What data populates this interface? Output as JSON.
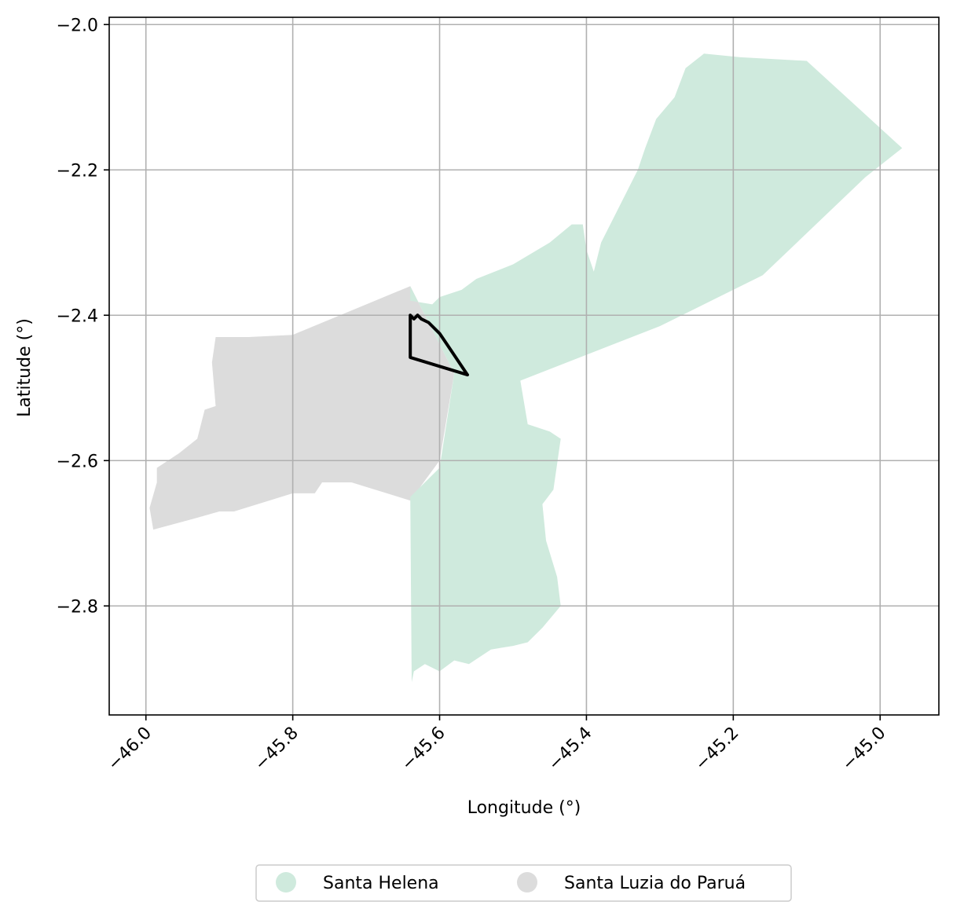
{
  "map": {
    "xlabel": "Longitude (°)",
    "ylabel": "Latitude (°)",
    "xlim": [
      -46.05,
      -44.92
    ],
    "ylim": [
      -2.95,
      -1.99
    ],
    "x_ticks": [
      -46.0,
      -45.8,
      -45.6,
      -45.4,
      -45.2,
      -45.0
    ],
    "x_tick_labels": [
      "−46.0",
      "−45.8",
      "−45.6",
      "−45.4",
      "−45.2",
      "−45.0"
    ],
    "y_ticks": [
      -2.0,
      -2.2,
      -2.4,
      -2.6,
      -2.8
    ],
    "y_tick_labels": [
      "−2.0",
      "−2.2",
      "−2.4",
      "−2.6",
      "−2.8"
    ],
    "grid": true,
    "legend_position": "bottom-center",
    "regions": [
      {
        "name": "Santa Luzia do Paruá",
        "color": "#dcdcdc",
        "polygon": [
          [
            -45.64,
            -2.36
          ],
          [
            -45.58,
            -2.48
          ],
          [
            -45.6,
            -2.6
          ],
          [
            -45.64,
            -2.655
          ],
          [
            -45.72,
            -2.63
          ],
          [
            -45.76,
            -2.63
          ],
          [
            -45.77,
            -2.645
          ],
          [
            -45.8,
            -2.645
          ],
          [
            -45.88,
            -2.67
          ],
          [
            -45.9,
            -2.67
          ],
          [
            -45.935,
            -2.68
          ],
          [
            -45.99,
            -2.695
          ],
          [
            -45.995,
            -2.665
          ],
          [
            -45.985,
            -2.63
          ],
          [
            -45.985,
            -2.61
          ],
          [
            -45.955,
            -2.59
          ],
          [
            -45.93,
            -2.57
          ],
          [
            -45.92,
            -2.53
          ],
          [
            -45.905,
            -2.525
          ],
          [
            -45.91,
            -2.465
          ],
          [
            -45.905,
            -2.43
          ],
          [
            -45.86,
            -2.43
          ],
          [
            -45.8,
            -2.427
          ]
        ]
      },
      {
        "name": "Santa Helena",
        "color": "#cfeadd",
        "polygon": [
          [
            -45.64,
            -2.36
          ],
          [
            -45.64,
            -2.38
          ],
          [
            -45.61,
            -2.385
          ],
          [
            -45.6,
            -2.375
          ],
          [
            -45.57,
            -2.365
          ],
          [
            -45.55,
            -2.35
          ],
          [
            -45.5,
            -2.33
          ],
          [
            -45.45,
            -2.3
          ],
          [
            -45.42,
            -2.275
          ],
          [
            -45.405,
            -2.275
          ],
          [
            -45.4,
            -2.31
          ],
          [
            -45.39,
            -2.34
          ],
          [
            -45.38,
            -2.3
          ],
          [
            -45.36,
            -2.26
          ],
          [
            -45.345,
            -2.23
          ],
          [
            -45.33,
            -2.2
          ],
          [
            -45.32,
            -2.17
          ],
          [
            -45.305,
            -2.13
          ],
          [
            -45.28,
            -2.1
          ],
          [
            -45.265,
            -2.06
          ],
          [
            -45.24,
            -2.04
          ],
          [
            -45.19,
            -2.045
          ],
          [
            -45.1,
            -2.05
          ],
          [
            -44.97,
            -2.17
          ],
          [
            -45.02,
            -2.21
          ],
          [
            -45.16,
            -2.345
          ],
          [
            -45.3,
            -2.415
          ],
          [
            -45.49,
            -2.49
          ],
          [
            -45.48,
            -2.55
          ],
          [
            -45.45,
            -2.56
          ],
          [
            -45.435,
            -2.57
          ],
          [
            -45.445,
            -2.64
          ],
          [
            -45.46,
            -2.66
          ],
          [
            -45.455,
            -2.71
          ],
          [
            -45.44,
            -2.76
          ],
          [
            -45.435,
            -2.8
          ],
          [
            -45.46,
            -2.83
          ],
          [
            -45.48,
            -2.85
          ],
          [
            -45.5,
            -2.855
          ],
          [
            -45.53,
            -2.86
          ],
          [
            -45.56,
            -2.88
          ],
          [
            -45.58,
            -2.875
          ],
          [
            -45.6,
            -2.89
          ],
          [
            -45.62,
            -2.88
          ],
          [
            -45.635,
            -2.89
          ],
          [
            -45.638,
            -2.905
          ],
          [
            -45.64,
            -2.65
          ],
          [
            -45.6,
            -2.61
          ],
          [
            -45.58,
            -2.48
          ]
        ]
      }
    ],
    "outline": {
      "color": "#000000",
      "polygon": [
        [
          -45.64,
          -2.4
        ],
        [
          -45.635,
          -2.405
        ],
        [
          -45.63,
          -2.4
        ],
        [
          -45.625,
          -2.405
        ],
        [
          -45.615,
          -2.41
        ],
        [
          -45.6,
          -2.425
        ],
        [
          -45.59,
          -2.44
        ],
        [
          -45.562,
          -2.482
        ],
        [
          -45.64,
          -2.458
        ]
      ]
    }
  }
}
